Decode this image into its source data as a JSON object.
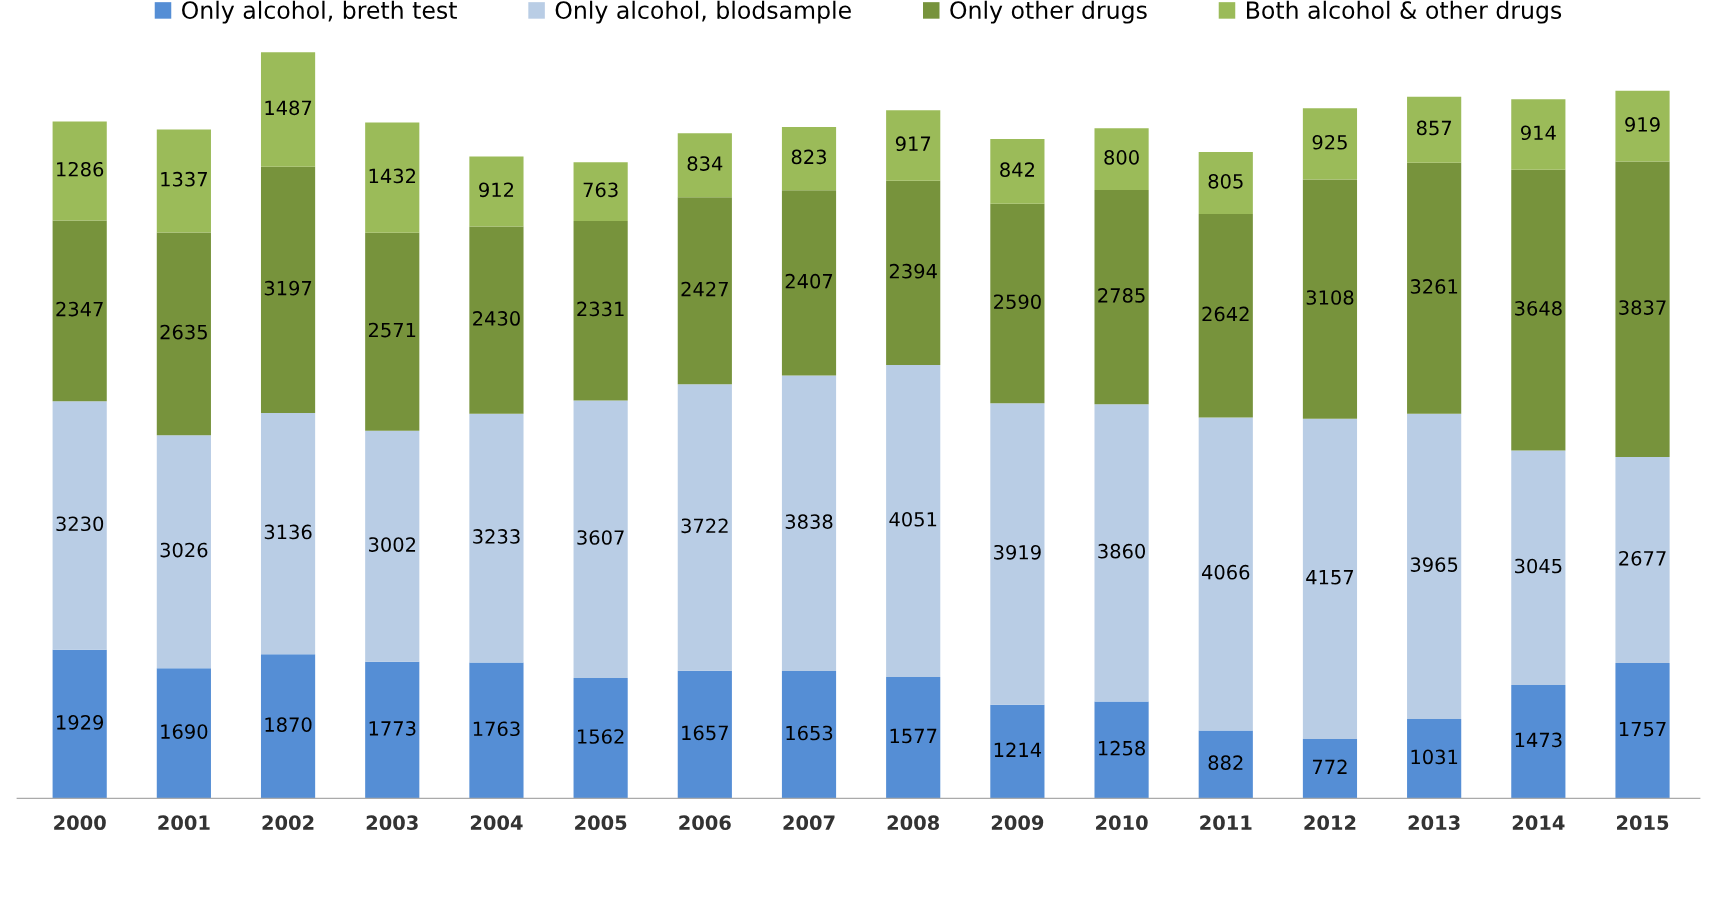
{
  "chart_data": {
    "type": "bar",
    "stacked": true,
    "data_labels": true,
    "legend": "top",
    "grid": false,
    "categories": [
      "2000",
      "2001",
      "2002",
      "2003",
      "2004",
      "2005",
      "2006",
      "2007",
      "2008",
      "2009",
      "2010",
      "2011",
      "2012",
      "2013",
      "2014",
      "2015"
    ],
    "series": [
      {
        "name": "Only alcohol, breth test",
        "color": "#558ed5",
        "values": [
          1929,
          1690,
          1870,
          1773,
          1763,
          1562,
          1657,
          1653,
          1577,
          1214,
          1258,
          882,
          772,
          1031,
          1473,
          1757
        ]
      },
      {
        "name": "Only alcohol, blodsample",
        "color": "#b9cde5",
        "values": [
          3230,
          3026,
          3136,
          3002,
          3233,
          3607,
          3722,
          3838,
          4051,
          3919,
          3860,
          4066,
          4157,
          3965,
          3045,
          2677
        ]
      },
      {
        "name": "Only other drugs",
        "color": "#77933c",
        "values": [
          2347,
          2635,
          3197,
          2571,
          2430,
          2331,
          2427,
          2407,
          2394,
          2590,
          2785,
          2642,
          3108,
          3261,
          3648,
          3837
        ]
      },
      {
        "name": "Both alcohol & other drugs",
        "color": "#9bbb59",
        "values": [
          1286,
          1337,
          1487,
          1432,
          912,
          763,
          834,
          823,
          917,
          842,
          800,
          805,
          925,
          857,
          914,
          919
        ]
      }
    ]
  }
}
